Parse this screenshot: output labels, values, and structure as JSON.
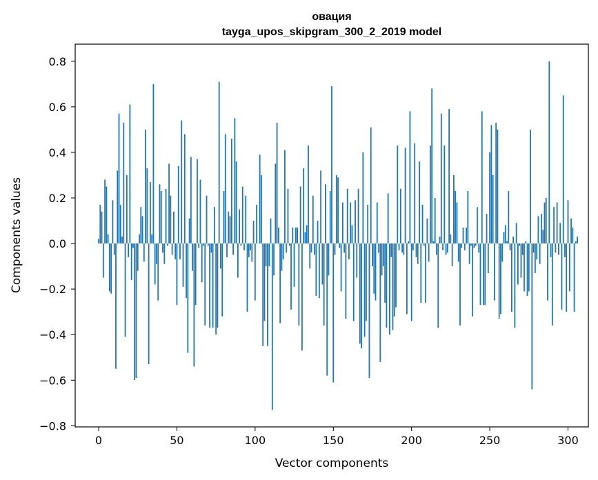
{
  "chart_data": {
    "type": "bar",
    "title": "овация",
    "subtitle": "tayga_upos_skipgram_300_2_2019 model",
    "xlabel": "Vector components",
    "ylabel": "Components values",
    "xlim": [
      -15,
      313
    ],
    "ylim": [
      -0.805,
      0.875
    ],
    "xticks": [
      0,
      50,
      100,
      150,
      200,
      250,
      300
    ],
    "xtick_labels": [
      "0",
      "50",
      "100",
      "150",
      "200",
      "250",
      "300"
    ],
    "yticks": [
      0.8,
      0.6,
      0.4,
      0.2,
      0.0,
      -0.2,
      -0.4,
      -0.6,
      -0.8
    ],
    "ytick_labels": [
      "0.8",
      "0.6",
      "0.4",
      "0.2",
      "0.0",
      "−0.2",
      "−0.4",
      "−0.6",
      "−0.8"
    ],
    "grid": false,
    "legend": false,
    "bar_color": "#1f77b4",
    "series": [
      {
        "values": [
          0.02,
          0.17,
          0.14,
          -0.15,
          0.28,
          0.25,
          0.04,
          -0.21,
          -0.22,
          0.19,
          -0.05,
          -0.55,
          0.32,
          0.57,
          0.17,
          0.03,
          0.53,
          -0.41,
          0.3,
          -0.06,
          0.61,
          -0.16,
          -0.02,
          -0.6,
          -0.59,
          -0.12,
          0.04,
          0.16,
          0.12,
          -0.08,
          0.5,
          0.33,
          -0.53,
          0.27,
          0.04,
          0.7,
          -0.18,
          -0.09,
          -0.25,
          0.26,
          0.23,
          -0.04,
          -0.09,
          0.24,
          -0.01,
          0.35,
          0.21,
          -0.05,
          0.14,
          -0.07,
          -0.27,
          0.34,
          -0.07,
          0.54,
          -0.19,
          0.48,
          -0.24,
          -0.48,
          0.11,
          0.38,
          -0.12,
          -0.54,
          -0.27,
          0.37,
          -0.02,
          0.28,
          -0.17,
          -0.01,
          -0.36,
          0.21,
          -0.01,
          -0.37,
          -0.04,
          -0.37,
          0.16,
          -0.4,
          -0.37,
          0.71,
          -0.11,
          -0.32,
          0.23,
          0.48,
          -0.06,
          0.14,
          0.12,
          0.46,
          -0.05,
          0.55,
          0.36,
          -0.15,
          0.15,
          -0.01,
          0.25,
          -0.03,
          0.21,
          -0.3,
          -0.06,
          -0.03,
          -0.08,
          0.1,
          -0.25,
          0.17,
          0.0,
          0.39,
          0.3,
          -0.45,
          -0.34,
          -0.1,
          -0.45,
          -0.1,
          0.11,
          -0.73,
          -0.14,
          0.35,
          0.53,
          0.07,
          -0.35,
          -0.12,
          -0.07,
          0.41,
          -0.04,
          0.24,
          -0.01,
          -0.29,
          0.07,
          -0.19,
          0.07,
          0.07,
          -0.36,
          0.25,
          -0.47,
          0.33,
          0.05,
          0.08,
          0.43,
          -0.11,
          -0.04,
          0.21,
          -0.05,
          -0.23,
          0.1,
          -0.24,
          0.32,
          -0.18,
          -0.36,
          0.26,
          -0.58,
          -0.14,
          0.23,
          0.69,
          -0.61,
          -0.05,
          0.3,
          0.29,
          -0.02,
          -0.21,
          0.18,
          -0.04,
          -0.33,
          0.24,
          -0.07,
          0.18,
          0.08,
          -0.34,
          0.19,
          -0.15,
          0.24,
          -0.44,
          -0.46,
          0.4,
          -0.41,
          -0.34,
          0.17,
          -0.59,
          0.51,
          -0.1,
          -0.22,
          -0.25,
          0.18,
          -0.04,
          -0.52,
          -0.14,
          -0.1,
          -0.26,
          -0.37,
          0.22,
          -0.4,
          -0.06,
          -0.38,
          -0.32,
          -0.28,
          0.43,
          -0.03,
          0.24,
          -0.04,
          -0.05,
          0.42,
          -0.31,
          0.01,
          0.58,
          -0.34,
          -0.03,
          0.44,
          -0.06,
          -0.09,
          0.36,
          -0.26,
          0.17,
          -0.01,
          -0.26,
          0.11,
          -0.08,
          0.43,
          0.68,
          0.01,
          0.2,
          -0.05,
          -0.37,
          0.03,
          0.57,
          -0.03,
          0.43,
          -0.05,
          -0.04,
          0.59,
          0.04,
          -0.1,
          0.3,
          0.23,
          0.18,
          -0.08,
          -0.36,
          -0.02,
          0.07,
          -0.03,
          0.07,
          0.23,
          -0.09,
          -0.01,
          -0.32,
          -0.02,
          -0.01,
          0.16,
          -0.04,
          -0.27,
          0.58,
          -0.27,
          -0.27,
          0.13,
          -0.13,
          0.4,
          0.52,
          0.3,
          -0.25,
          0.53,
          0.5,
          -0.33,
          -0.31,
          -0.08,
          0.05,
          0.08,
          0.01,
          0.23,
          -0.03,
          -0.3,
          0.03,
          -0.37,
          0.09,
          -0.18,
          -0.01,
          -0.15,
          -0.05,
          -0.21,
          0.01,
          -0.23,
          -0.21,
          0.5,
          -0.64,
          -0.04,
          -0.13,
          -0.07,
          0.12,
          -0.09,
          0.13,
          0.06,
          0.18,
          0.2,
          -0.25,
          0.8,
          -0.06,
          -0.36,
          0.16,
          -0.04,
          0.18,
          -0.05,
          0.09,
          -0.29,
          0.65,
          -0.06,
          -0.3,
          0.19,
          -0.21,
          0.11,
          0.07,
          -0.3,
          0.01,
          0.03
        ]
      }
    ]
  }
}
